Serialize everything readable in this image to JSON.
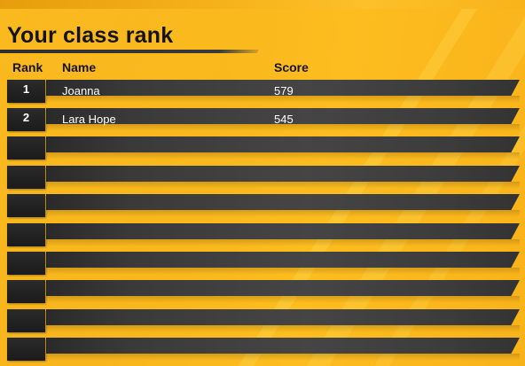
{
  "page": {
    "title": "Your class rank"
  },
  "table": {
    "headers": {
      "rank": "Rank",
      "name": "Name",
      "score": "Score"
    },
    "rows": [
      {
        "rank": "1",
        "name": "Joanna",
        "score": "579"
      },
      {
        "rank": "2",
        "name": "Lara Hope",
        "score": "545"
      },
      {
        "rank": "",
        "name": "",
        "score": ""
      },
      {
        "rank": "",
        "name": "",
        "score": ""
      },
      {
        "rank": "",
        "name": "",
        "score": ""
      },
      {
        "rank": "",
        "name": "",
        "score": ""
      },
      {
        "rank": "",
        "name": "",
        "score": ""
      },
      {
        "rank": "",
        "name": "",
        "score": ""
      },
      {
        "rank": "",
        "name": "",
        "score": ""
      },
      {
        "rank": "",
        "name": "",
        "score": ""
      }
    ]
  },
  "colors": {
    "background": "#f9b81c",
    "row_bar": "#3f3f3f",
    "rank_box": "#222222",
    "row_text": "#ffffff",
    "heading_text": "#141414"
  }
}
